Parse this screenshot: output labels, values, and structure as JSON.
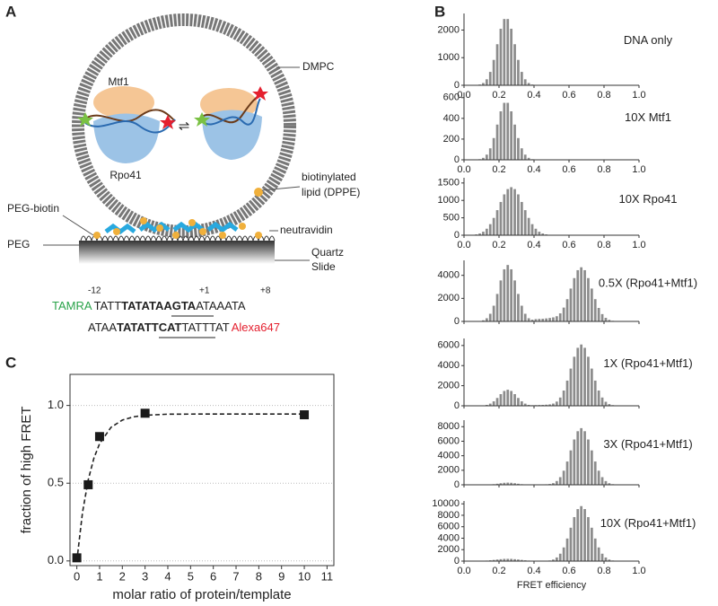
{
  "figure": {
    "panels": [
      "A",
      "B",
      "C"
    ],
    "diagram": {
      "labels": [
        "Mtf1",
        "Rpo41",
        "DMPC",
        "biotinylated",
        "lipid (DPPE)",
        "PEG-biotin",
        "neutravidin",
        "PEG",
        "Quartz",
        "Slide"
      ],
      "positions": [
        "-12",
        "+1",
        "+8"
      ],
      "strand_top": [
        "TAMRA",
        "TATT",
        "TATA",
        "TAAGTA",
        "ATAAATA"
      ],
      "strand_bottom": [
        "ATAA",
        "TATAT",
        "TCAT",
        "TATTTAT",
        "Alexa647"
      ]
    }
  },
  "chart_data": [
    {
      "type": "histogram",
      "annotation": "DNA only",
      "color": "#8c8c8c",
      "bins": [
        0,
        0.02,
        0.04,
        0.06,
        0.08,
        0.1,
        0.12,
        0.14,
        0.16,
        0.18,
        0.2,
        0.22,
        0.24,
        0.26,
        0.28,
        0.3,
        0.32,
        0.34,
        0.36,
        0.38,
        0.4,
        0.42,
        0.44,
        0.46,
        0.48,
        0.5,
        0.52,
        0.54,
        0.56,
        0.58,
        0.6,
        0.62,
        0.64,
        0.66,
        0.68,
        0.7,
        0.72,
        0.74,
        0.76,
        0.78,
        0.8,
        0.82,
        0.84,
        0.86,
        0.88,
        0.9,
        0.92,
        0.94,
        0.96,
        0.98,
        1
      ],
      "counts": [
        0,
        0,
        0,
        8,
        27,
        83,
        218,
        485,
        919,
        1487,
        2046,
        2400,
        2400,
        2046,
        1487,
        919,
        485,
        218,
        83,
        27,
        8,
        0,
        0,
        0,
        0,
        0,
        0,
        0,
        0,
        0,
        0,
        0,
        0,
        0,
        0,
        0,
        0,
        0,
        0,
        0,
        0,
        0,
        0,
        0,
        0,
        0,
        0,
        0,
        0,
        0
      ],
      "xlim": [
        0,
        1
      ],
      "xticks": [
        {
          "value": 0,
          "label": "0.0"
        },
        {
          "value": 0.2,
          "label": "0.2"
        },
        {
          "value": 0.4,
          "label": "0.4"
        },
        {
          "value": 0.6,
          "label": "0.6"
        },
        {
          "value": 0.8,
          "label": "0.8"
        },
        {
          "value": 1,
          "label": "1.0"
        }
      ],
      "ylim": [
        0,
        2600
      ],
      "yticks": [
        0,
        1000,
        2000
      ]
    },
    {
      "type": "histogram",
      "annotation": "10X Mtf1",
      "color": "#8c8c8c",
      "bins": [
        0,
        0.02,
        0.04,
        0.06,
        0.08,
        0.1,
        0.12,
        0.14,
        0.16,
        0.18,
        0.2,
        0.22,
        0.24,
        0.26,
        0.28,
        0.3,
        0.32,
        0.34,
        0.36,
        0.38,
        0.4,
        0.42,
        0.44,
        0.46,
        0.48,
        0.5,
        0.52,
        0.54,
        0.56,
        0.58,
        0.6,
        0.62,
        0.64,
        0.66,
        0.68,
        0.7,
        0.72,
        0.74,
        0.76,
        0.78,
        0.8,
        0.82,
        0.84,
        0.86,
        0.88,
        0.9,
        0.92,
        0.94,
        0.96,
        0.98,
        1
      ],
      "counts": [
        0,
        0,
        0,
        2,
        6,
        19,
        50,
        111,
        210,
        340,
        468,
        550,
        550,
        468,
        340,
        210,
        111,
        50,
        19,
        6,
        2,
        0,
        0,
        0,
        0,
        0,
        0,
        0,
        0,
        0,
        0,
        0,
        0,
        0,
        0,
        0,
        0,
        0,
        0,
        0,
        0,
        0,
        0,
        0,
        0,
        0,
        0,
        0,
        0,
        0
      ],
      "xlim": [
        0,
        1
      ],
      "xticks": [
        {
          "value": 0,
          "label": "0.0"
        },
        {
          "value": 0.2,
          "label": "0.2"
        },
        {
          "value": 0.4,
          "label": "0.4"
        },
        {
          "value": 0.6,
          "label": "0.6"
        },
        {
          "value": 0.8,
          "label": "0.8"
        },
        {
          "value": 1,
          "label": "1.0"
        }
      ],
      "ylim": [
        0,
        650
      ],
      "yticks": [
        0,
        200,
        400,
        600
      ]
    },
    {
      "type": "histogram",
      "annotation": "10X Rpo41",
      "color": "#8c8c8c",
      "bins": [
        0,
        0.02,
        0.04,
        0.06,
        0.08,
        0.1,
        0.12,
        0.14,
        0.16,
        0.18,
        0.2,
        0.22,
        0.24,
        0.26,
        0.28,
        0.3,
        0.32,
        0.34,
        0.36,
        0.38,
        0.4,
        0.42,
        0.44,
        0.46,
        0.48,
        0.5,
        0.52,
        0.54,
        0.56,
        0.58,
        0.6,
        0.62,
        0.64,
        0.66,
        0.68,
        0.7,
        0.72,
        0.74,
        0.76,
        0.78,
        0.8,
        0.82,
        0.84,
        0.86,
        0.88,
        0.9,
        0.92,
        0.94,
        0.96,
        0.98,
        1
      ],
      "counts": [
        1,
        4,
        10,
        23,
        50,
        101,
        187,
        318,
        497,
        720,
        955,
        1173,
        1325,
        1380,
        1325,
        1173,
        955,
        720,
        497,
        318,
        187,
        101,
        50,
        23,
        10,
        4,
        1,
        0,
        0,
        0,
        0,
        0,
        0,
        0,
        0,
        0,
        0,
        0,
        0,
        0,
        0,
        0,
        0,
        0,
        0,
        0,
        0,
        0,
        0,
        0
      ],
      "xlim": [
        0,
        1
      ],
      "xticks": [
        {
          "value": 0,
          "label": "0.0"
        },
        {
          "value": 0.2,
          "label": "0.2"
        },
        {
          "value": 0.4,
          "label": "0.4"
        },
        {
          "value": 0.6,
          "label": "0.6"
        },
        {
          "value": 0.8,
          "label": "0.8"
        },
        {
          "value": 1,
          "label": "1.0"
        }
      ],
      "ylim": [
        0,
        1650
      ],
      "yticks": [
        0,
        500,
        1000,
        1500
      ]
    },
    {
      "type": "histogram",
      "annotation": "0.5X (Rpo41+Mtf1)",
      "color": "#8c8c8c",
      "bins": [
        0,
        0.02,
        0.04,
        0.06,
        0.08,
        0.1,
        0.12,
        0.14,
        0.16,
        0.18,
        0.2,
        0.22,
        0.24,
        0.26,
        0.28,
        0.3,
        0.32,
        0.34,
        0.36,
        0.38,
        0.4,
        0.42,
        0.44,
        0.46,
        0.48,
        0.5,
        0.52,
        0.54,
        0.56,
        0.58,
        0.6,
        0.62,
        0.64,
        0.66,
        0.68,
        0.7,
        0.72,
        0.74,
        0.76,
        0.78,
        0.8,
        0.82,
        0.84,
        0.86,
        0.88,
        0.9,
        0.92,
        0.94,
        0.96,
        0.98,
        1
      ],
      "counts": [
        0,
        0,
        2,
        7,
        29,
        97,
        275,
        663,
        1362,
        2385,
        3557,
        4523,
        4900,
        4523,
        3557,
        2385,
        1362,
        663,
        275,
        150,
        200,
        220,
        230,
        260,
        300,
        350,
        450,
        700,
        1200,
        1932,
        2853,
        3760,
        4446,
        4700,
        4446,
        3760,
        2853,
        1932,
        1170,
        635,
        310,
        132,
        52,
        19,
        5,
        0,
        0,
        0,
        0,
        0
      ],
      "xlim": [
        0,
        1
      ],
      "xticks": [
        0,
        0.2,
        0.4,
        0.6,
        0.8,
        1
      ],
      "ylim": [
        0,
        5300
      ],
      "yticks": [
        0,
        2000,
        4000
      ]
    },
    {
      "type": "histogram",
      "annotation": "1X (Rpo41+Mtf1)",
      "color": "#8c8c8c",
      "bins": [
        0,
        0.02,
        0.04,
        0.06,
        0.08,
        0.1,
        0.12,
        0.14,
        0.16,
        0.18,
        0.2,
        0.22,
        0.24,
        0.26,
        0.28,
        0.3,
        0.32,
        0.34,
        0.36,
        0.38,
        0.4,
        0.42,
        0.44,
        0.46,
        0.48,
        0.5,
        0.52,
        0.54,
        0.56,
        0.58,
        0.6,
        0.62,
        0.64,
        0.66,
        0.68,
        0.7,
        0.72,
        0.74,
        0.76,
        0.78,
        0.8,
        0.82,
        0.84,
        0.86,
        0.88,
        0.9,
        0.92,
        0.94,
        0.96,
        0.98,
        1
      ],
      "counts": [
        0,
        0,
        1,
        2,
        9,
        32,
        90,
        216,
        445,
        779,
        1161,
        1477,
        1600,
        1477,
        1161,
        779,
        445,
        216,
        90,
        60,
        70,
        80,
        90,
        110,
        140,
        220,
        420,
        824,
        1519,
        2507,
        3703,
        4880,
        5770,
        6100,
        5770,
        4880,
        3703,
        2507,
        1519,
        824,
        402,
        171,
        67,
        25,
        8,
        0,
        0,
        0,
        0,
        0
      ],
      "xlim": [
        0,
        1
      ],
      "xticks": [
        0,
        0.2,
        0.4,
        0.6,
        0.8,
        1
      ],
      "ylim": [
        0,
        6700
      ],
      "yticks": [
        0,
        2000,
        4000,
        6000
      ]
    },
    {
      "type": "histogram",
      "annotation": "3X (Rpo41+Mtf1)",
      "color": "#8c8c8c",
      "bins": [
        0,
        0.02,
        0.04,
        0.06,
        0.08,
        0.1,
        0.12,
        0.14,
        0.16,
        0.18,
        0.2,
        0.22,
        0.24,
        0.26,
        0.28,
        0.3,
        0.32,
        0.34,
        0.36,
        0.38,
        0.4,
        0.42,
        0.44,
        0.46,
        0.48,
        0.5,
        0.52,
        0.54,
        0.56,
        0.58,
        0.6,
        0.62,
        0.64,
        0.66,
        0.68,
        0.7,
        0.72,
        0.74,
        0.76,
        0.78,
        0.8,
        0.82,
        0.84,
        0.86,
        0.88,
        0.9,
        0.92,
        0.94,
        0.96,
        0.98,
        1
      ],
      "counts": [
        0,
        0,
        0,
        0,
        2,
        6,
        17,
        41,
        83,
        146,
        218,
        277,
        300,
        277,
        218,
        146,
        83,
        41,
        30,
        30,
        35,
        40,
        50,
        70,
        110,
        230,
        520,
        1054,
        1942,
        3207,
        4736,
        6241,
        7379,
        7800,
        7379,
        6241,
        4736,
        3207,
        1942,
        1054,
        515,
        219,
        86,
        32,
        10,
        0,
        0,
        0,
        0,
        0
      ],
      "xlim": [
        0,
        1
      ],
      "xticks": [
        0,
        0.2,
        0.4,
        0.6,
        0.8,
        1
      ],
      "ylim": [
        0,
        8900
      ],
      "yticks": [
        0,
        2000,
        4000,
        6000,
        8000
      ]
    },
    {
      "type": "histogram",
      "annotation": "10X (Rpo41+Mtf1)",
      "color": "#8c8c8c",
      "xlabel": "FRET efficiency",
      "bins": [
        0,
        0.02,
        0.04,
        0.06,
        0.08,
        0.1,
        0.12,
        0.14,
        0.16,
        0.18,
        0.2,
        0.22,
        0.24,
        0.26,
        0.28,
        0.3,
        0.32,
        0.34,
        0.36,
        0.38,
        0.4,
        0.42,
        0.44,
        0.46,
        0.48,
        0.5,
        0.52,
        0.54,
        0.56,
        0.58,
        0.6,
        0.62,
        0.64,
        0.66,
        0.68,
        0.7,
        0.72,
        0.74,
        0.76,
        0.78,
        0.8,
        0.82,
        0.84,
        0.86,
        0.88,
        0.9,
        0.92,
        0.94,
        0.96,
        0.98,
        1
      ],
      "counts": [
        0,
        0,
        7,
        15,
        30,
        50,
        90,
        140,
        210,
        280,
        340,
        390,
        400,
        390,
        340,
        280,
        210,
        140,
        90,
        50,
        30,
        15,
        20,
        45,
        110,
        275,
        640,
        1297,
        2390,
        3947,
        5829,
        7681,
        9082,
        9600,
        9082,
        7681,
        5829,
        3947,
        2390,
        1297,
        634,
        270,
        106,
        39,
        12,
        0,
        0,
        0,
        0,
        0
      ],
      "xlim": [
        0,
        1
      ],
      "xticks": [
        {
          "value": 0,
          "label": "0.0"
        },
        {
          "value": 0.2,
          "label": "0.2"
        },
        {
          "value": 0.4,
          "label": "0.4"
        },
        {
          "value": 0.6,
          "label": "0.6"
        },
        {
          "value": 0.8,
          "label": "0.8"
        },
        {
          "value": 1,
          "label": "1.0"
        }
      ],
      "ylim": [
        0,
        10500
      ],
      "yticks": [
        0,
        2000,
        4000,
        6000,
        8000,
        10000
      ]
    },
    {
      "type": "scatter",
      "xlabel": "molar ratio of protein/template",
      "ylabel": "fraction of high FRET",
      "color": "#1a1a1a",
      "x": [
        0,
        0.5,
        1,
        3,
        10
      ],
      "values": [
        0.02,
        0.49,
        0.8,
        0.95,
        0.94
      ],
      "fit": {
        "x": [
          0,
          0.25,
          0.5,
          0.75,
          1,
          1.5,
          2,
          2.5,
          3,
          4,
          6,
          8,
          10
        ],
        "values": [
          0,
          0.312,
          0.521,
          0.661,
          0.754,
          0.859,
          0.906,
          0.927,
          0.937,
          0.944,
          0.945,
          0.945,
          0.945
        ]
      },
      "xlim": [
        -0.3,
        11.3
      ],
      "xticks": [
        0,
        1,
        2,
        3,
        4,
        5,
        6,
        7,
        8,
        9,
        10,
        11
      ],
      "ylim": [
        -0.03,
        1.2
      ],
      "yticks": [
        {
          "value": 0,
          "label": "0.0"
        },
        {
          "value": 0.5,
          "label": "0.5"
        },
        {
          "value": 1,
          "label": "1.0"
        }
      ],
      "grid": true
    }
  ]
}
